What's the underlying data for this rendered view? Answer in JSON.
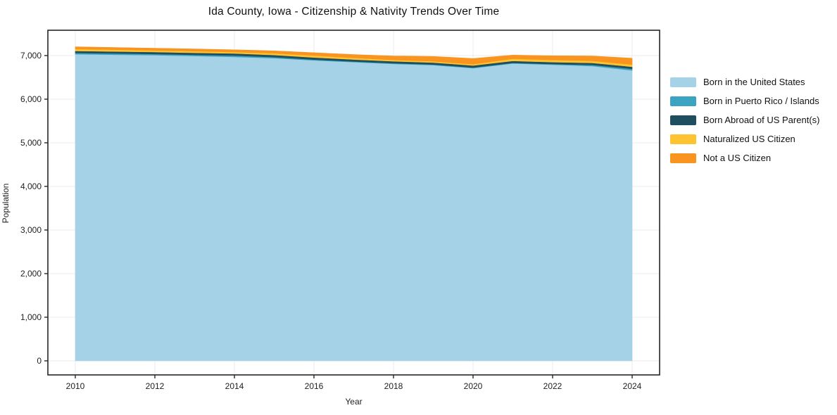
{
  "page": {
    "title": "Ida County, Iowa - Citizenship & Nativity Trends Over Time"
  },
  "chart_data": {
    "type": "area",
    "stacked": true,
    "title": "Ida County, Iowa - Citizenship & Nativity Trends Over Time",
    "xlabel": "Year",
    "ylabel": "Population",
    "x": [
      2010,
      2011,
      2012,
      2013,
      2014,
      2015,
      2016,
      2017,
      2018,
      2019,
      2020,
      2021,
      2022,
      2023,
      2024
    ],
    "series": [
      {
        "name": "Born in the United States",
        "color": "#a5d2e6",
        "values": [
          7030,
          7020,
          7010,
          6990,
          6970,
          6940,
          6890,
          6850,
          6810,
          6780,
          6710,
          6820,
          6790,
          6760,
          6660
        ]
      },
      {
        "name": "Born in Puerto Rico / Islands",
        "color": "#3da3c2",
        "values": [
          30,
          28,
          25,
          28,
          30,
          25,
          18,
          15,
          15,
          15,
          15,
          12,
          15,
          25,
          35
        ]
      },
      {
        "name": "Born Abroad of US Parent(s)",
        "color": "#1f4e5f",
        "values": [
          45,
          45,
          45,
          45,
          48,
          48,
          48,
          45,
          45,
          45,
          48,
          45,
          45,
          45,
          48
        ]
      },
      {
        "name": "Naturalized US Citizen",
        "color": "#fdc330",
        "values": [
          45,
          42,
          40,
          38,
          35,
          40,
          45,
          38,
          30,
          30,
          30,
          50,
          50,
          50,
          50
        ]
      },
      {
        "name": "Not a US Citizen",
        "color": "#f8941f",
        "values": [
          50,
          50,
          50,
          50,
          50,
          55,
          65,
          75,
          90,
          110,
          130,
          85,
          95,
          110,
          145
        ]
      }
    ],
    "ylim": [
      0,
      7565
    ],
    "yticks": [
      0,
      1000,
      2000,
      3000,
      4000,
      5000,
      6000,
      7000
    ],
    "xticks": [
      2010,
      2012,
      2014,
      2016,
      2018,
      2020,
      2022,
      2024
    ],
    "grid": true,
    "legend_position": "right"
  },
  "colors": {
    "background": "#ffffff",
    "grid": "#ebebeb",
    "axis": "#262626",
    "tick_text": "#222222",
    "title_text": "#111111"
  }
}
